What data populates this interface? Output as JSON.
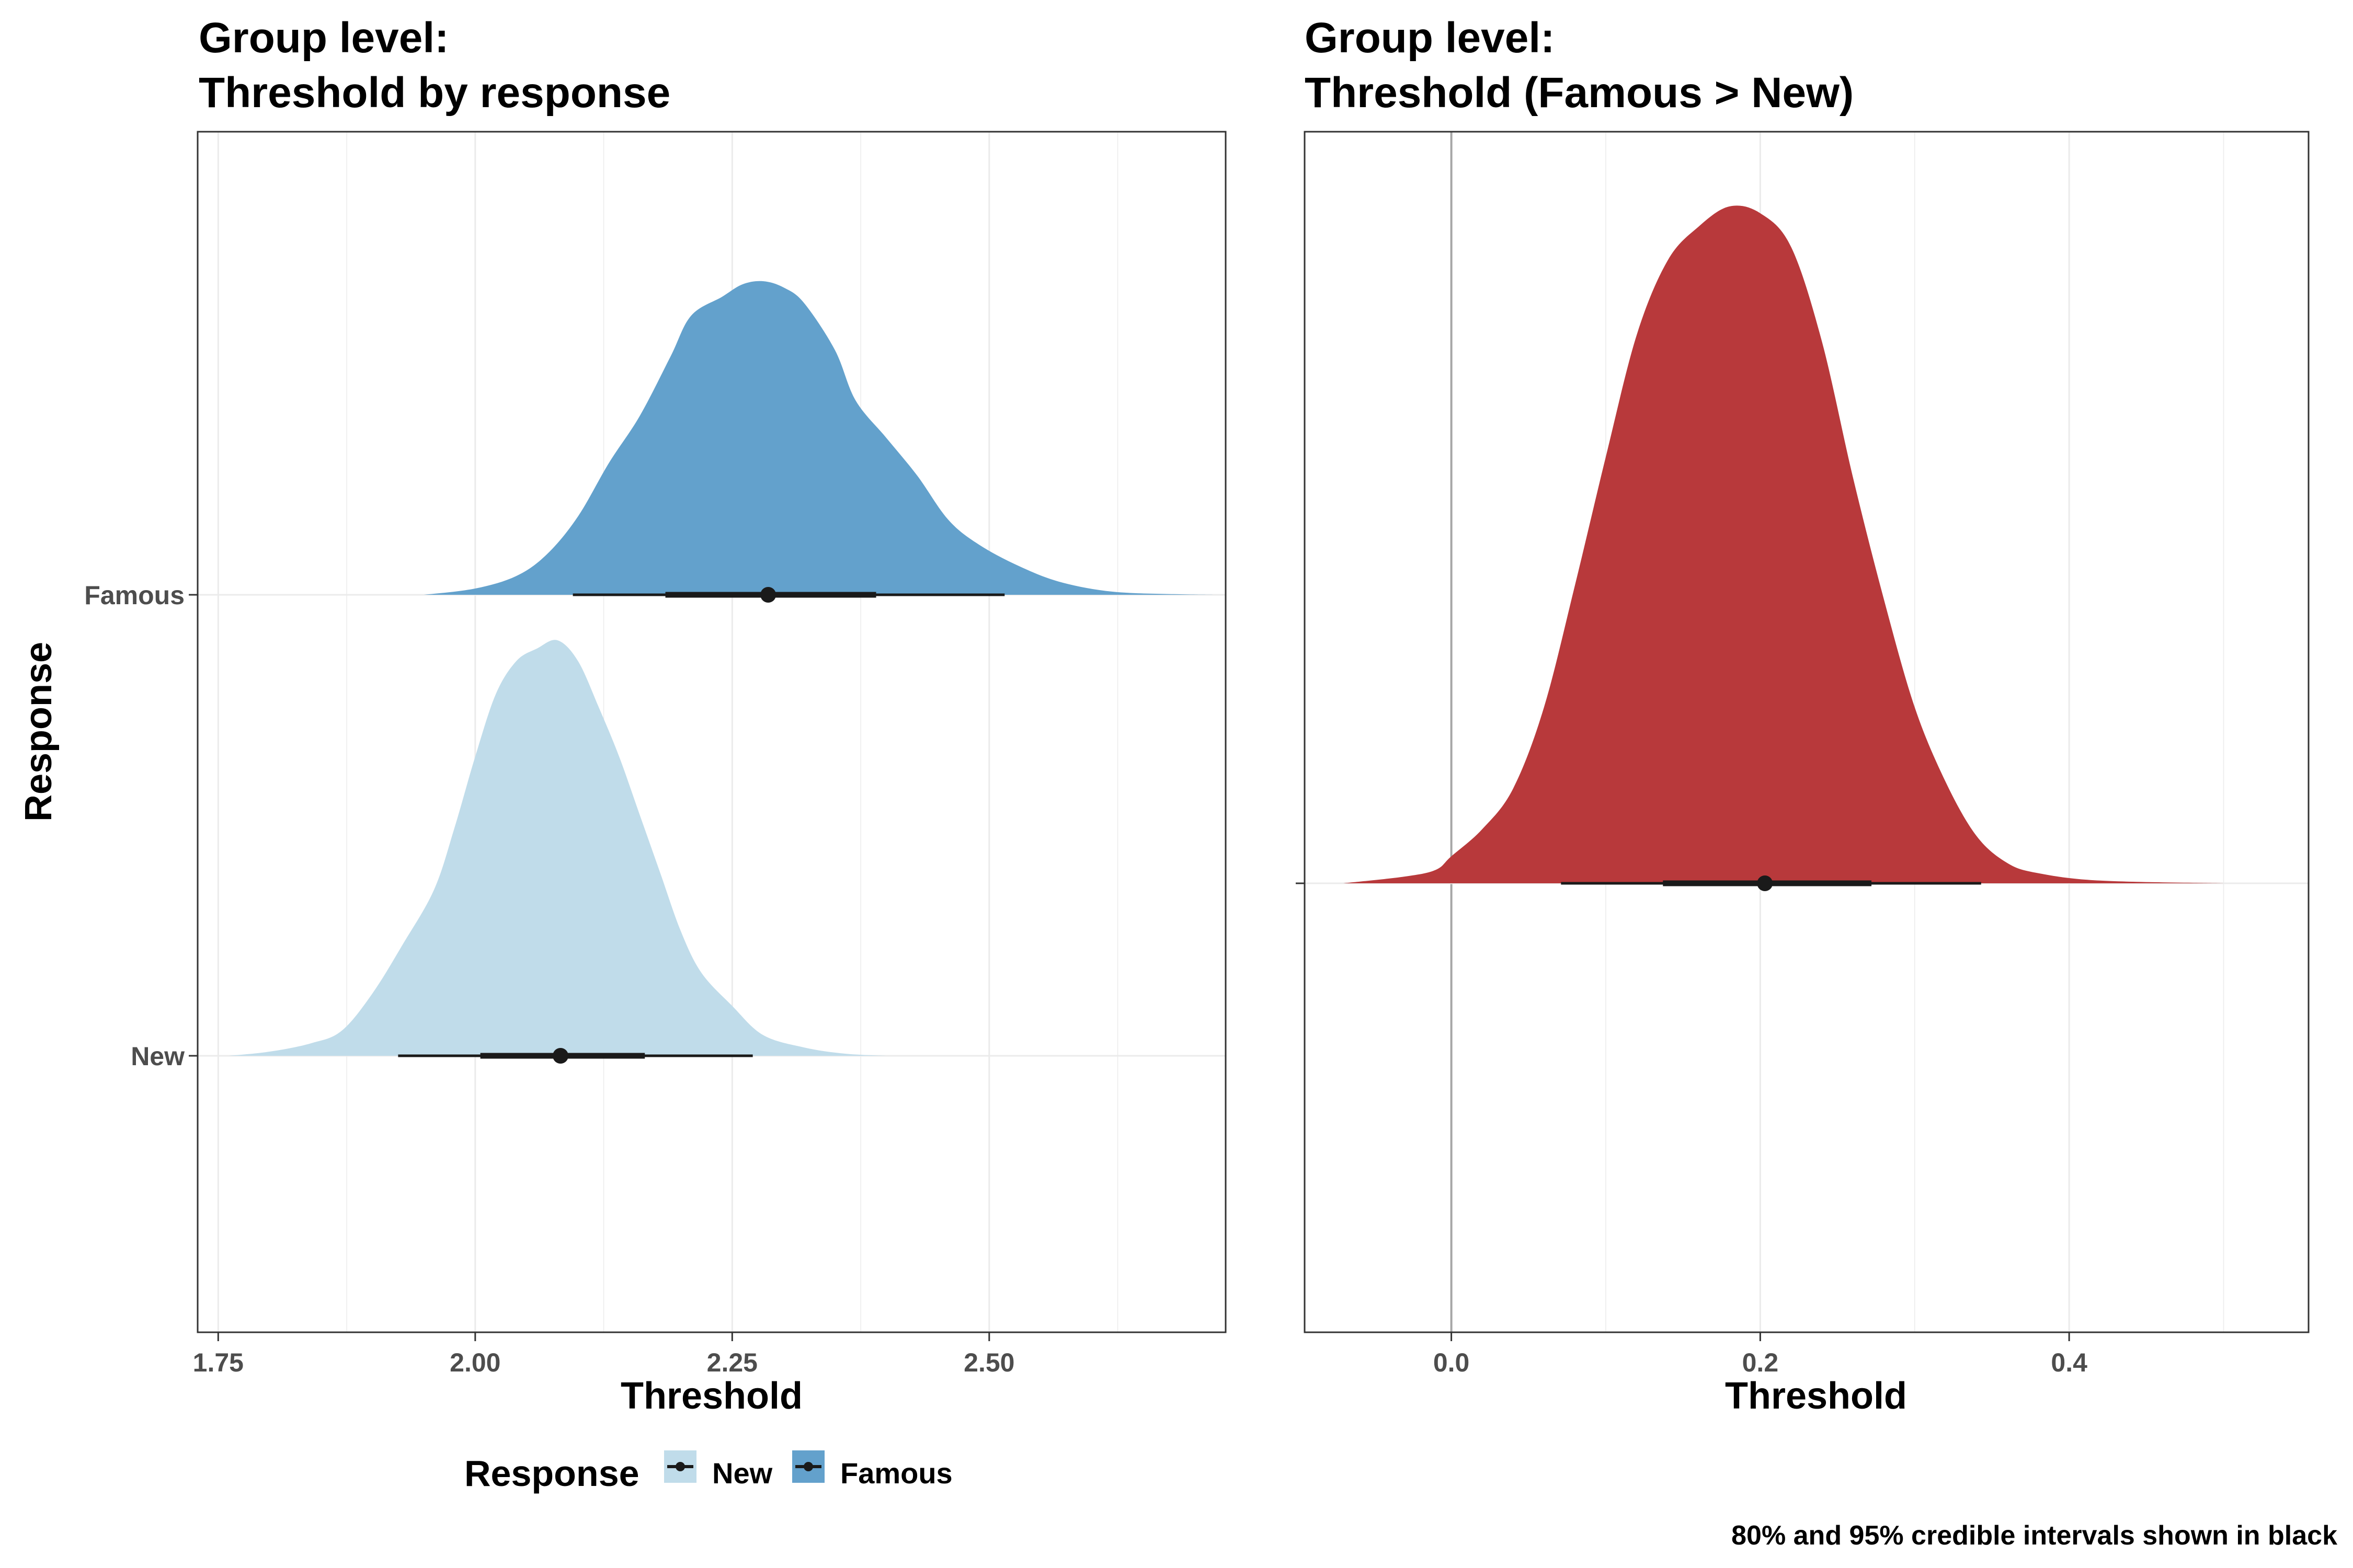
{
  "caption": "80% and 95% credible intervals shown in black",
  "colors": {
    "new": "#c0dcea",
    "famous": "#63a1cc",
    "difference": "#b8393b",
    "interval": "#1a1a1a",
    "grid": "#ebebeb",
    "border": "#333333",
    "zero_line": "#a6a6a6"
  },
  "chart_data": [
    {
      "type": "density",
      "title_lines": [
        "Group level:",
        "Threshold by response"
      ],
      "xlabel": "Threshold",
      "ylabel": "Response",
      "xlim": [
        1.73,
        2.73
      ],
      "x_ticks": [
        1.75,
        2.0,
        2.25,
        2.5
      ],
      "x_tick_labels": [
        "1.75",
        "2.00",
        "2.25",
        "2.50"
      ],
      "categories": [
        "New",
        "Famous"
      ],
      "grid": true,
      "legend": {
        "title": "Response",
        "position": "bottom",
        "entries": [
          "New",
          "Famous"
        ]
      },
      "series": [
        {
          "name": "New",
          "color": "#c0dcea",
          "density_x": [
            1.76,
            1.8,
            1.84,
            1.87,
            1.9,
            1.93,
            1.96,
            1.98,
            2.0,
            2.02,
            2.04,
            2.06,
            2.08,
            2.1,
            2.12,
            2.14,
            2.16,
            2.18,
            2.2,
            2.22,
            2.25,
            2.28,
            2.32,
            2.36,
            2.4
          ],
          "density_y": [
            0.0,
            0.01,
            0.03,
            0.06,
            0.15,
            0.27,
            0.4,
            0.55,
            0.72,
            0.87,
            0.95,
            0.98,
            1.0,
            0.95,
            0.84,
            0.72,
            0.58,
            0.44,
            0.3,
            0.2,
            0.12,
            0.05,
            0.02,
            0.005,
            0.0
          ],
          "median": 2.083,
          "interval_80": [
            2.005,
            2.165
          ],
          "interval_95": [
            1.925,
            2.27
          ]
        },
        {
          "name": "Famous",
          "color": "#63a1cc",
          "density_x": [
            1.95,
            2.0,
            2.04,
            2.07,
            2.1,
            2.13,
            2.16,
            2.19,
            2.21,
            2.24,
            2.26,
            2.28,
            2.3,
            2.32,
            2.35,
            2.37,
            2.4,
            2.43,
            2.46,
            2.49,
            2.53,
            2.57,
            2.62,
            2.68,
            2.72
          ],
          "density_y": [
            0.0,
            0.02,
            0.06,
            0.13,
            0.25,
            0.42,
            0.57,
            0.76,
            0.89,
            0.95,
            0.99,
            1.0,
            0.98,
            0.93,
            0.78,
            0.62,
            0.5,
            0.38,
            0.24,
            0.16,
            0.09,
            0.04,
            0.01,
            0.002,
            0.0
          ],
          "median": 2.285,
          "interval_80": [
            2.185,
            2.39
          ],
          "interval_95": [
            2.095,
            2.515
          ]
        }
      ]
    },
    {
      "type": "density",
      "title_lines": [
        "Group level:",
        "Threshold (Famous > New)"
      ],
      "xlabel": "Threshold",
      "ylabel": "",
      "xlim": [
        -0.095,
        0.555
      ],
      "x_ticks": [
        0.0,
        0.2,
        0.4
      ],
      "x_tick_labels": [
        "0.0",
        "0.2",
        "0.4"
      ],
      "reference_line_x": 0.0,
      "grid": true,
      "series": [
        {
          "name": "",
          "color": "#b8393b",
          "density_x": [
            -0.07,
            -0.03,
            -0.01,
            0.0,
            0.02,
            0.04,
            0.06,
            0.08,
            0.1,
            0.12,
            0.14,
            0.16,
            0.18,
            0.2,
            0.22,
            0.24,
            0.26,
            0.28,
            0.3,
            0.32,
            0.34,
            0.36,
            0.38,
            0.42,
            0.5
          ],
          "density_y": [
            0.0,
            0.01,
            0.02,
            0.04,
            0.08,
            0.14,
            0.26,
            0.44,
            0.63,
            0.81,
            0.92,
            0.97,
            1.0,
            0.99,
            0.94,
            0.8,
            0.6,
            0.42,
            0.26,
            0.15,
            0.07,
            0.03,
            0.015,
            0.004,
            0.0
          ],
          "median": 0.203,
          "interval_80": [
            0.137,
            0.272
          ],
          "interval_95": [
            0.071,
            0.343
          ]
        }
      ]
    }
  ]
}
